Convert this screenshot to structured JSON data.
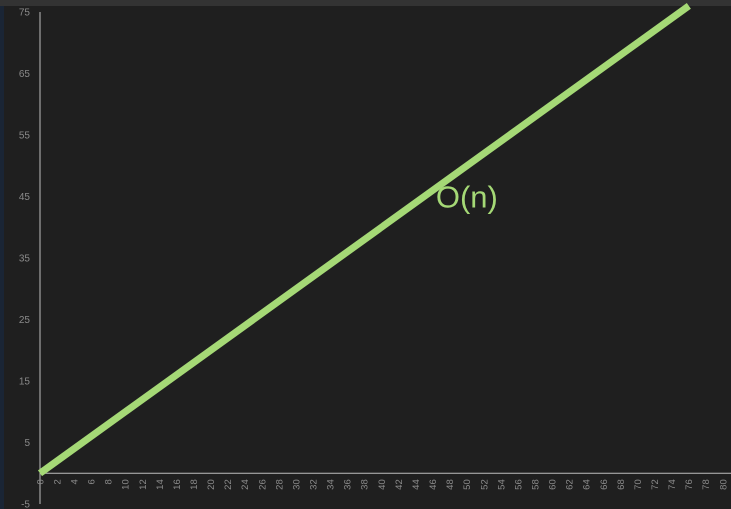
{
  "chart_data": {
    "type": "line",
    "x": [
      0,
      76
    ],
    "series": [
      {
        "values": [
          0,
          76
        ],
        "color": "#a5d976"
      }
    ],
    "annotation": {
      "text": "O(n)",
      "x": 50,
      "y": 45
    },
    "xlim": [
      0,
      80
    ],
    "ylim": [
      -5,
      75
    ],
    "x_ticks": [
      "0",
      "2",
      "4",
      "6",
      "8",
      "10",
      "12",
      "14",
      "16",
      "18",
      "20",
      "22",
      "24",
      "26",
      "28",
      "30",
      "32",
      "34",
      "36",
      "38",
      "40",
      "42",
      "44",
      "46",
      "48",
      "50",
      "52",
      "54",
      "56",
      "58",
      "60",
      "62",
      "64",
      "66",
      "68",
      "70",
      "72",
      "74",
      "76",
      "78",
      "80"
    ],
    "y_ticks": [
      "-5",
      "5",
      "15",
      "25",
      "35",
      "45",
      "55",
      "65",
      "75"
    ],
    "colors": {
      "background": "#1f1f1f",
      "axis": "#bdbdbd",
      "tick_text": "#8a8a8a",
      "line": "#a5d976"
    },
    "grid": false
  }
}
